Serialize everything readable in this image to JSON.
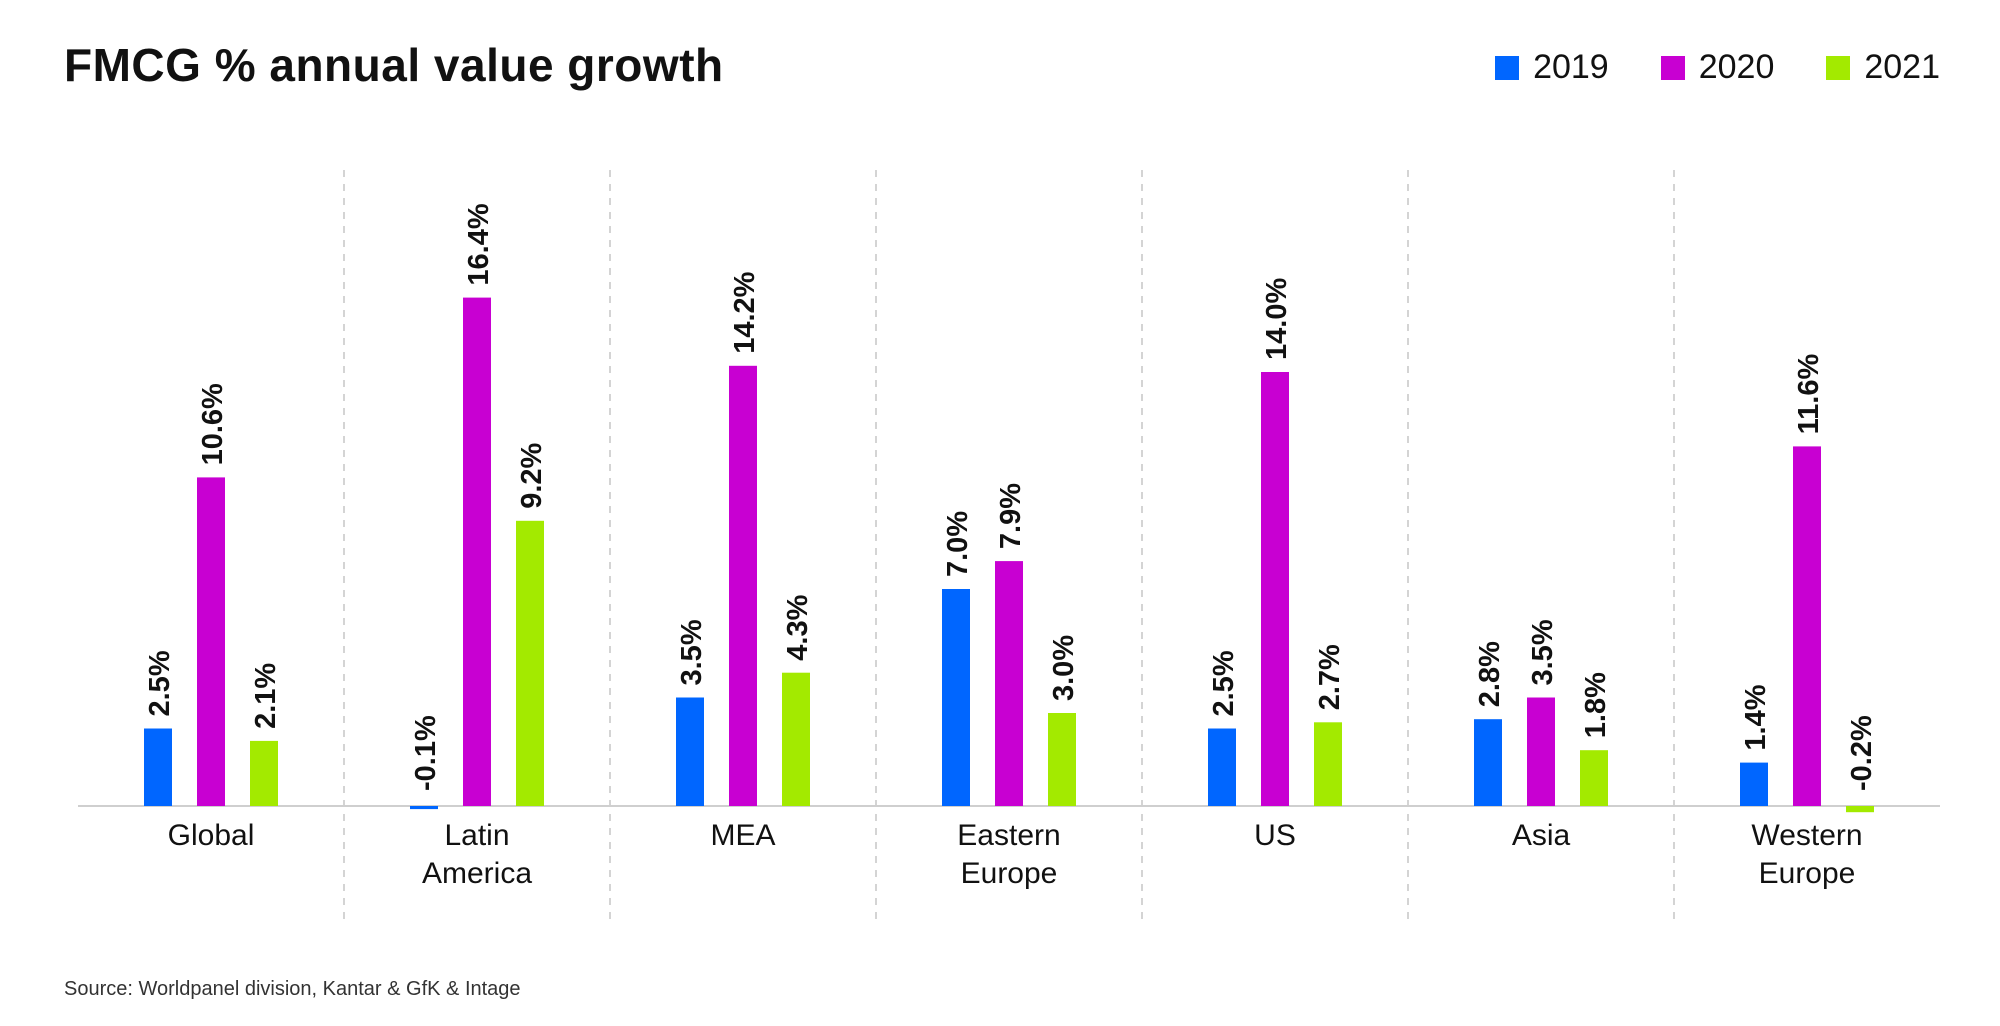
{
  "title": "FMCG % annual value growth",
  "source": "Source: Worldpanel division, Kantar & GfK & Intage",
  "colors": {
    "2019": "#0066ff",
    "2020": "#c800d2",
    "2021": "#a3ea00"
  },
  "chart_data": {
    "type": "bar",
    "title": "FMCG % annual value growth",
    "xlabel": "",
    "ylabel": "",
    "categories": [
      [
        "Global"
      ],
      [
        "Latin",
        "America"
      ],
      [
        "MEA"
      ],
      [
        "Eastern",
        "Europe"
      ],
      [
        "US"
      ],
      [
        "Asia"
      ],
      [
        "Western",
        "Europe"
      ]
    ],
    "series": [
      {
        "name": "2019",
        "color": "#0066ff",
        "values": [
          2.5,
          -0.1,
          3.5,
          7.0,
          2.5,
          2.8,
          1.4
        ],
        "labels": [
          "2.5%",
          "-0.1%",
          "3.5%",
          "7.0%",
          "2.5%",
          "2.8%",
          "1.4%"
        ]
      },
      {
        "name": "2020",
        "color": "#c800d2",
        "values": [
          10.6,
          16.4,
          14.2,
          7.9,
          14.0,
          3.5,
          11.6
        ],
        "labels": [
          "10.6%",
          "16.4%",
          "14.2%",
          "7.9%",
          "14.0%",
          "3.5%",
          "11.6%"
        ]
      },
      {
        "name": "2021",
        "color": "#a3ea00",
        "values": [
          2.1,
          9.2,
          4.3,
          3.0,
          2.7,
          1.8,
          -0.2
        ],
        "labels": [
          "2.1%",
          "9.2%",
          "4.3%",
          "3.0%",
          "2.7%",
          "1.8%",
          "-0.2%"
        ]
      }
    ],
    "legend": "top-right",
    "grid": false
  }
}
